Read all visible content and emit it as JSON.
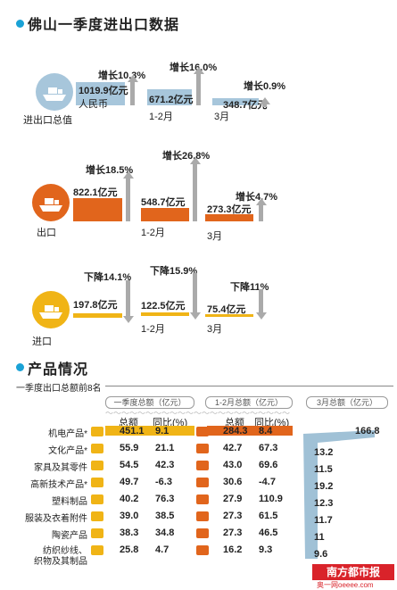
{
  "title": "佛山一季度进出口数据",
  "sections": [
    {
      "label": "进出口总值",
      "color": "#a7c6db",
      "total": "1019.9亿元",
      "unit": "人民币",
      "total_change": "增长10.3%",
      "feb": "671.2亿元",
      "feb_label": "1-2月",
      "feb_change": "增长16.0%",
      "mar": "348.7亿元",
      "mar_label": "3月",
      "mar_change": "增长0.9%"
    },
    {
      "label": "出口",
      "color": "#e1651c",
      "total": "822.1亿元",
      "total_change": "增长18.5%",
      "feb": "548.7亿元",
      "feb_label": "1-2月",
      "feb_change": "增长26.8%",
      "mar": "273.3亿元",
      "mar_label": "3月",
      "mar_change": "增长4.7%"
    },
    {
      "label": "进口",
      "color": "#f0b416",
      "total": "197.8亿元",
      "total_change": "下降14.1%",
      "feb": "122.5亿元",
      "feb_label": "1-2月",
      "feb_change": "下降15.9%",
      "mar": "75.4亿元",
      "mar_label": "3月",
      "mar_change": "下降11%"
    }
  ],
  "products": {
    "title": "产品情况",
    "subtitle": "一季度出口总额前8名",
    "pill_q1": "一季度总额（亿元）",
    "pill_feb": "1-2月总额（亿元）",
    "pill_mar": "3月总额（亿元）",
    "col_total": "总额",
    "col_yoy": "同比(%)",
    "rows": [
      {
        "name": "机电产品*",
        "q1": "451.1",
        "q1_yoy": "9.1",
        "feb": "284.3",
        "feb_yoy": "8.4",
        "mar": "166.8"
      },
      {
        "name": "文化产品*",
        "q1": "55.9",
        "q1_yoy": "21.1",
        "feb": "42.7",
        "feb_yoy": "67.3",
        "mar": "13.2"
      },
      {
        "name": "家具及其零件",
        "q1": "54.5",
        "q1_yoy": "42.3",
        "feb": "43.0",
        "feb_yoy": "69.6",
        "mar": "11.5"
      },
      {
        "name": "高新技术产品*",
        "q1": "49.7",
        "q1_yoy": "-6.3",
        "feb": "30.6",
        "feb_yoy": "-4.7",
        "mar": "19.2"
      },
      {
        "name": "塑料制品",
        "q1": "40.2",
        "q1_yoy": "76.3",
        "feb": "27.9",
        "feb_yoy": "110.9",
        "mar": "12.3"
      },
      {
        "name": "服装及衣着附件",
        "q1": "39.0",
        "q1_yoy": "38.5",
        "feb": "27.3",
        "feb_yoy": "61.5",
        "mar": "11.7"
      },
      {
        "name": "陶瓷产品",
        "q1": "38.3",
        "q1_yoy": "34.8",
        "feb": "27.3",
        "feb_yoy": "46.5",
        "mar": "11"
      },
      {
        "name": "纺织纱线、",
        "name2": "织物及其制品",
        "q1": "25.8",
        "q1_yoy": "4.7",
        "feb": "16.2",
        "feb_yoy": "9.3",
        "mar": "9.6"
      }
    ]
  },
  "logo": {
    "name": "南方都市报",
    "sub": "奥一网oeeee.com",
    "color": "#d9232a"
  }
}
